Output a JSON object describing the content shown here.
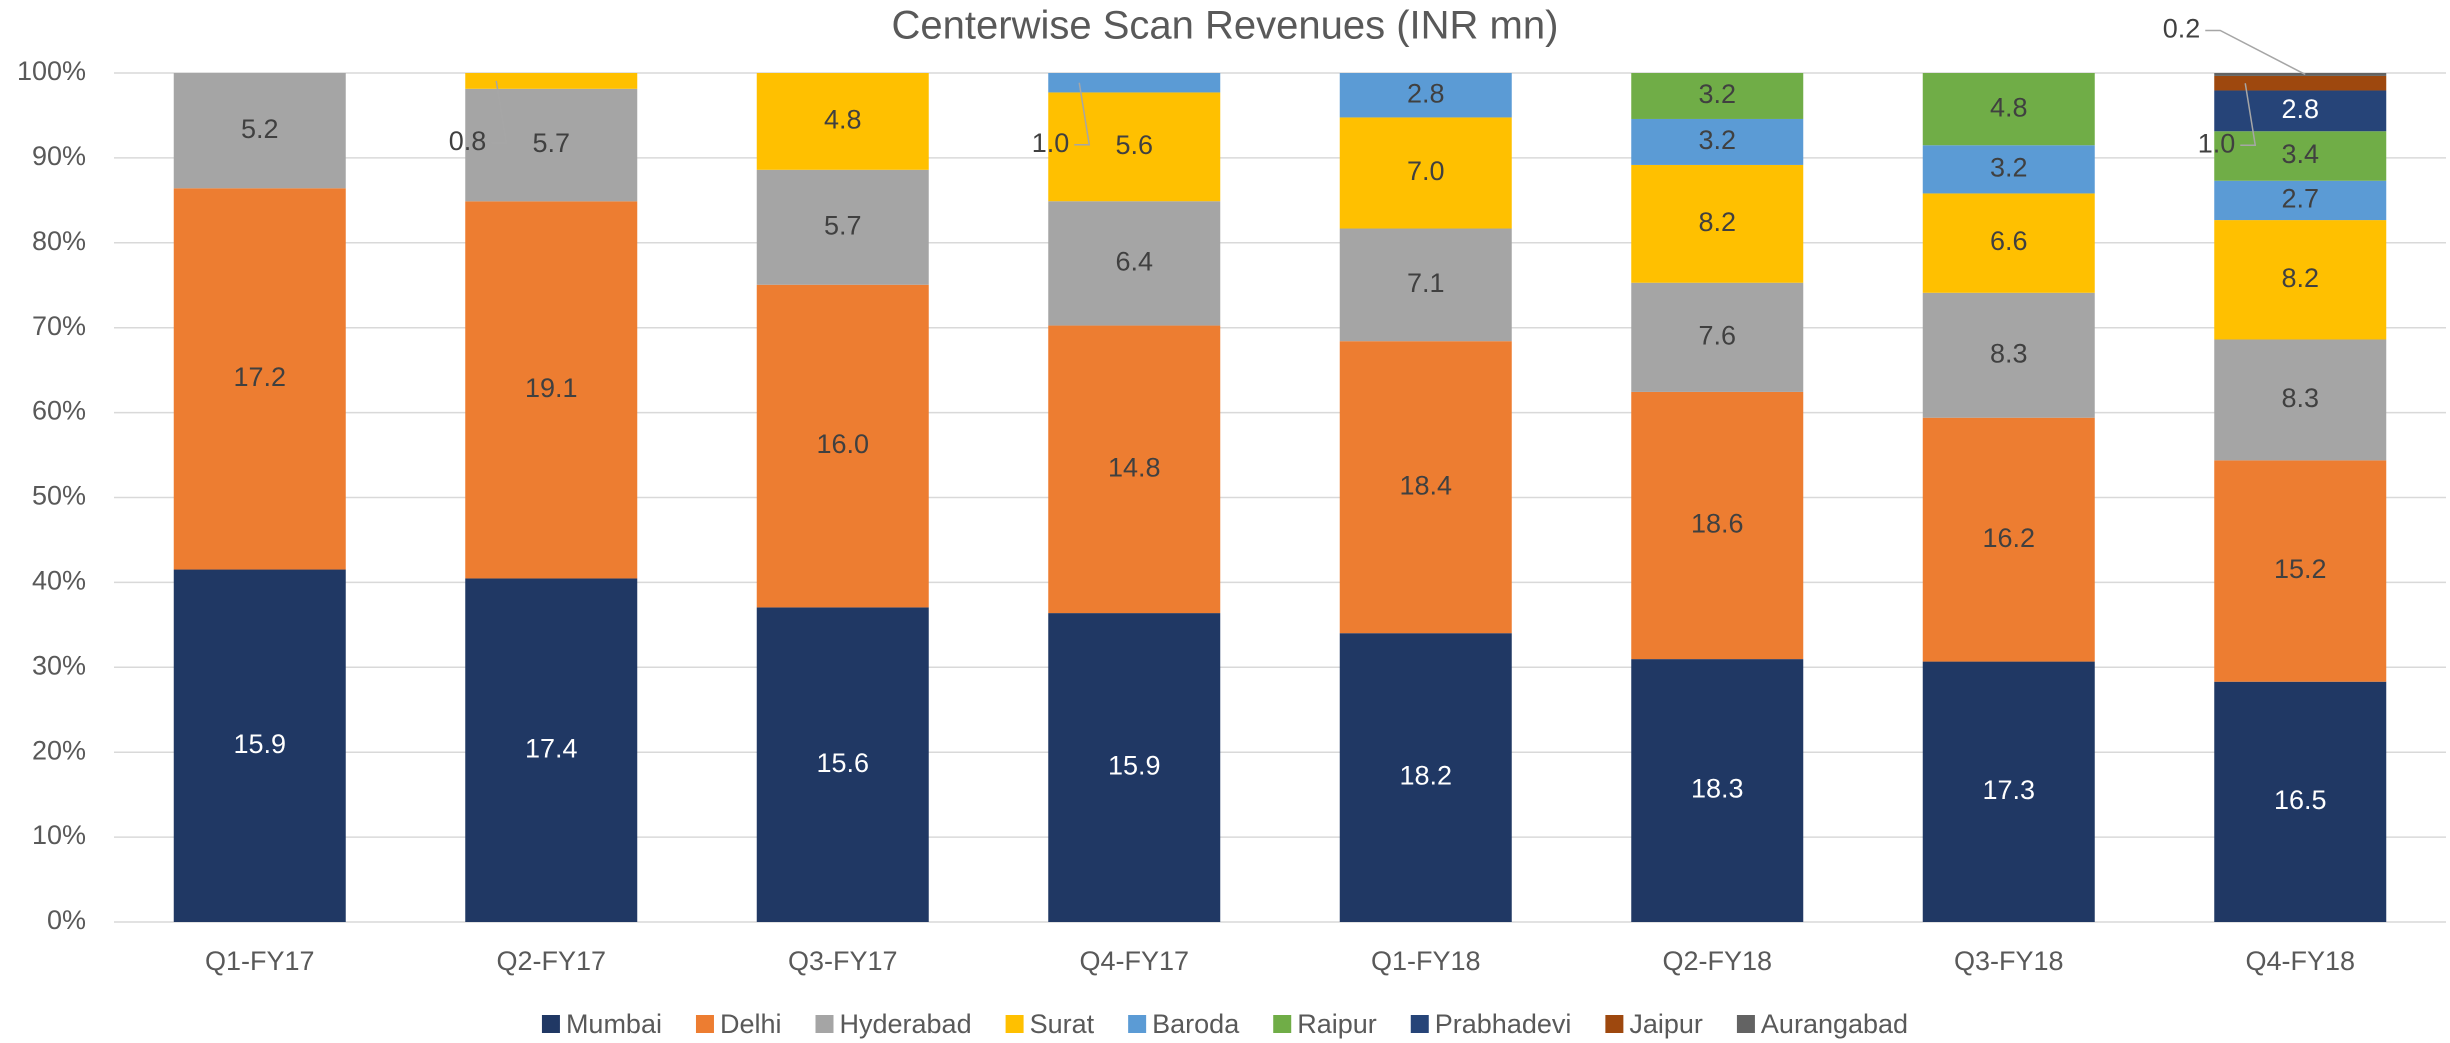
{
  "chart_data": {
    "type": "bar",
    "stacked": "percent",
    "title": "Centerwise Scan Revenues (INR mn)",
    "categories": [
      "Q1-FY17",
      "Q2-FY17",
      "Q3-FY17",
      "Q4-FY17",
      "Q1-FY18",
      "Q2-FY18",
      "Q3-FY18",
      "Q4-FY18"
    ],
    "series": [
      {
        "name": "Mumbai",
        "color": "#203864",
        "values": [
          15.9,
          17.4,
          15.6,
          15.9,
          18.2,
          18.3,
          17.3,
          16.5
        ],
        "value_labels": [
          "15.9",
          "17.4",
          "15.6",
          "15.9",
          "18.2",
          "18.3",
          "17.3",
          "16.5"
        ]
      },
      {
        "name": "Delhi",
        "color": "#ED7D31",
        "values": [
          17.2,
          19.1,
          16.0,
          14.8,
          18.4,
          18.6,
          16.2,
          15.2
        ],
        "value_labels": [
          "17.2",
          "19.1",
          "16.0",
          "14.8",
          "18.4",
          "18.6",
          "16.2",
          "15.2"
        ]
      },
      {
        "name": "Hyderabad",
        "color": "#A5A5A5",
        "values": [
          5.2,
          5.7,
          5.7,
          6.4,
          7.1,
          7.6,
          8.3,
          8.3
        ],
        "value_labels": [
          "5.2",
          "5.7",
          "5.7",
          "6.4",
          "7.1",
          "7.6",
          "8.3",
          "8.3"
        ]
      },
      {
        "name": "Surat",
        "color": "#FFC000",
        "values": [
          null,
          0.8,
          4.8,
          5.6,
          7.0,
          8.2,
          6.6,
          8.2
        ],
        "value_labels": [
          null,
          "0.8",
          "4.8",
          "5.6",
          "7.0",
          "8.2",
          "6.6",
          "8.2"
        ]
      },
      {
        "name": "Baroda",
        "color": "#5B9BD5",
        "values": [
          null,
          null,
          null,
          1.0,
          2.8,
          3.2,
          3.2,
          2.7
        ],
        "value_labels": [
          null,
          null,
          null,
          "1.0",
          "2.8",
          "3.2",
          "3.2",
          "2.7"
        ]
      },
      {
        "name": "Raipur",
        "color": "#70AD47",
        "values": [
          null,
          null,
          null,
          null,
          null,
          3.2,
          4.8,
          3.4
        ],
        "value_labels": [
          null,
          null,
          null,
          null,
          null,
          "3.2",
          "4.8",
          "3.4"
        ]
      },
      {
        "name": "Prabhadevi",
        "color": "#264478",
        "values": [
          null,
          null,
          null,
          null,
          null,
          null,
          null,
          2.8
        ],
        "value_labels": [
          null,
          null,
          null,
          null,
          null,
          null,
          null,
          "2.8"
        ]
      },
      {
        "name": "Jaipur",
        "color": "#9E480E",
        "values": [
          null,
          null,
          null,
          null,
          null,
          null,
          null,
          1.0
        ],
        "value_labels": [
          null,
          null,
          null,
          null,
          null,
          null,
          null,
          "1.0"
        ]
      },
      {
        "name": "Aurangabad",
        "color": "#636363",
        "values": [
          null,
          null,
          null,
          null,
          null,
          null,
          null,
          0.2
        ],
        "value_labels": [
          null,
          null,
          null,
          null,
          null,
          null,
          null,
          "0.2"
        ]
      }
    ],
    "ylim": [
      0,
      100
    ],
    "yticks": [
      {
        "value": 0,
        "label": "0%"
      },
      {
        "value": 10,
        "label": "10%"
      },
      {
        "value": 20,
        "label": "20%"
      },
      {
        "value": 30,
        "label": "30%"
      },
      {
        "value": 40,
        "label": "40%"
      },
      {
        "value": 50,
        "label": "50%"
      },
      {
        "value": 60,
        "label": "60%"
      },
      {
        "value": 70,
        "label": "70%"
      },
      {
        "value": 80,
        "label": "80%"
      },
      {
        "value": 90,
        "label": "90%"
      },
      {
        "value": 100,
        "label": "100%"
      }
    ],
    "grid": true,
    "legend": "bottom"
  }
}
